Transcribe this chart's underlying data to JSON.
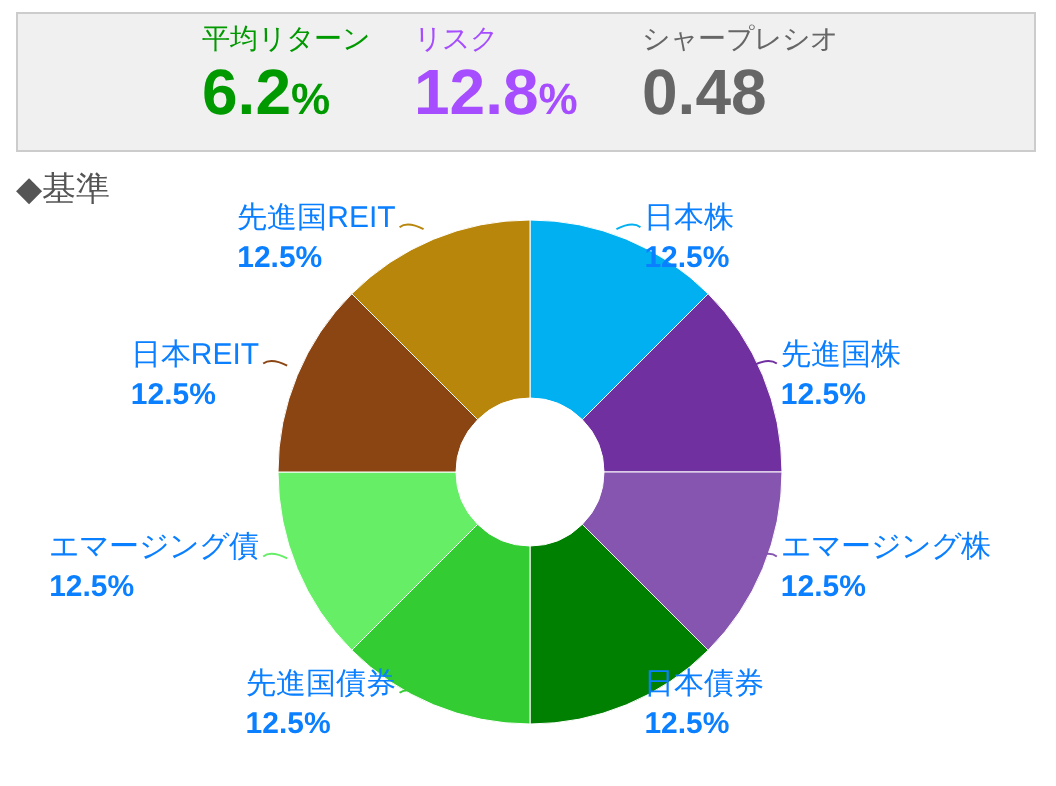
{
  "chart_data": [
    {
      "type": "other",
      "categories": [
        "平均リターン",
        "リスク",
        "シャープレシオ"
      ],
      "value_labels": [
        "6.2%",
        "12.8%",
        "0.48"
      ],
      "colors": [
        "#009900",
        "#a64dff",
        "#666666"
      ]
    },
    {
      "type": "donut",
      "title": "◆基準",
      "categories": [
        "日本株",
        "先進国株",
        "エマージング株",
        "日本債券",
        "先進国債券",
        "エマージング債",
        "日本REIT",
        "先進国REIT"
      ],
      "values": [
        12.5,
        12.5,
        12.5,
        12.5,
        12.5,
        12.5,
        12.5,
        12.5
      ],
      "value_labels": [
        "12.5%",
        "12.5%",
        "12.5%",
        "12.5%",
        "12.5%",
        "12.5%",
        "12.5%",
        "12.5%"
      ],
      "colors": [
        "#00b0f0",
        "#7030a0",
        "#8655b0",
        "#008000",
        "#33cc33",
        "#66ee66",
        "#8b4513",
        "#b8860b"
      ]
    }
  ]
}
